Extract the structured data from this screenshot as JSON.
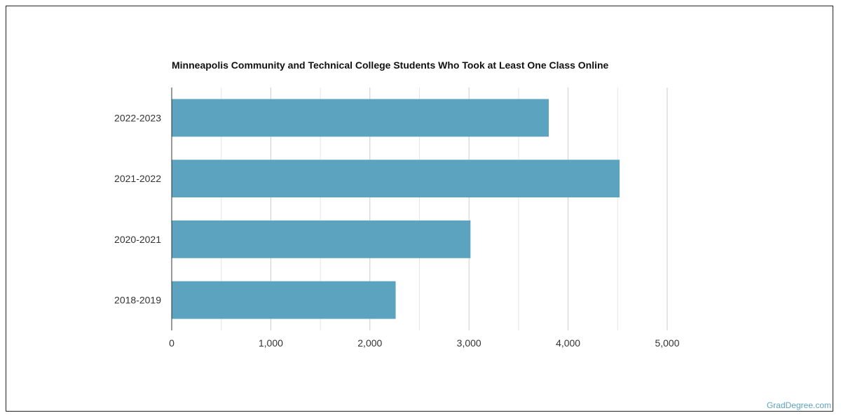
{
  "chart_data": {
    "type": "bar",
    "orientation": "horizontal",
    "title": "Minneapolis Community and Technical College Students Who Took at Least One Class Online",
    "categories": [
      "2022-2023",
      "2021-2022",
      "2020-2021",
      "2018-2019"
    ],
    "values": [
      3805,
      4520,
      3015,
      2260
    ],
    "xlim": [
      0,
      5000
    ],
    "xticks": [
      0,
      1000,
      2000,
      3000,
      4000,
      5000
    ],
    "xtick_labels": [
      "0",
      "1,000",
      "2,000",
      "3,000",
      "4,000",
      "5,000"
    ],
    "xlabel": "",
    "ylabel": "",
    "grid": true,
    "bar_color": "#5ba3bf"
  },
  "watermark": "GradDegree.com"
}
